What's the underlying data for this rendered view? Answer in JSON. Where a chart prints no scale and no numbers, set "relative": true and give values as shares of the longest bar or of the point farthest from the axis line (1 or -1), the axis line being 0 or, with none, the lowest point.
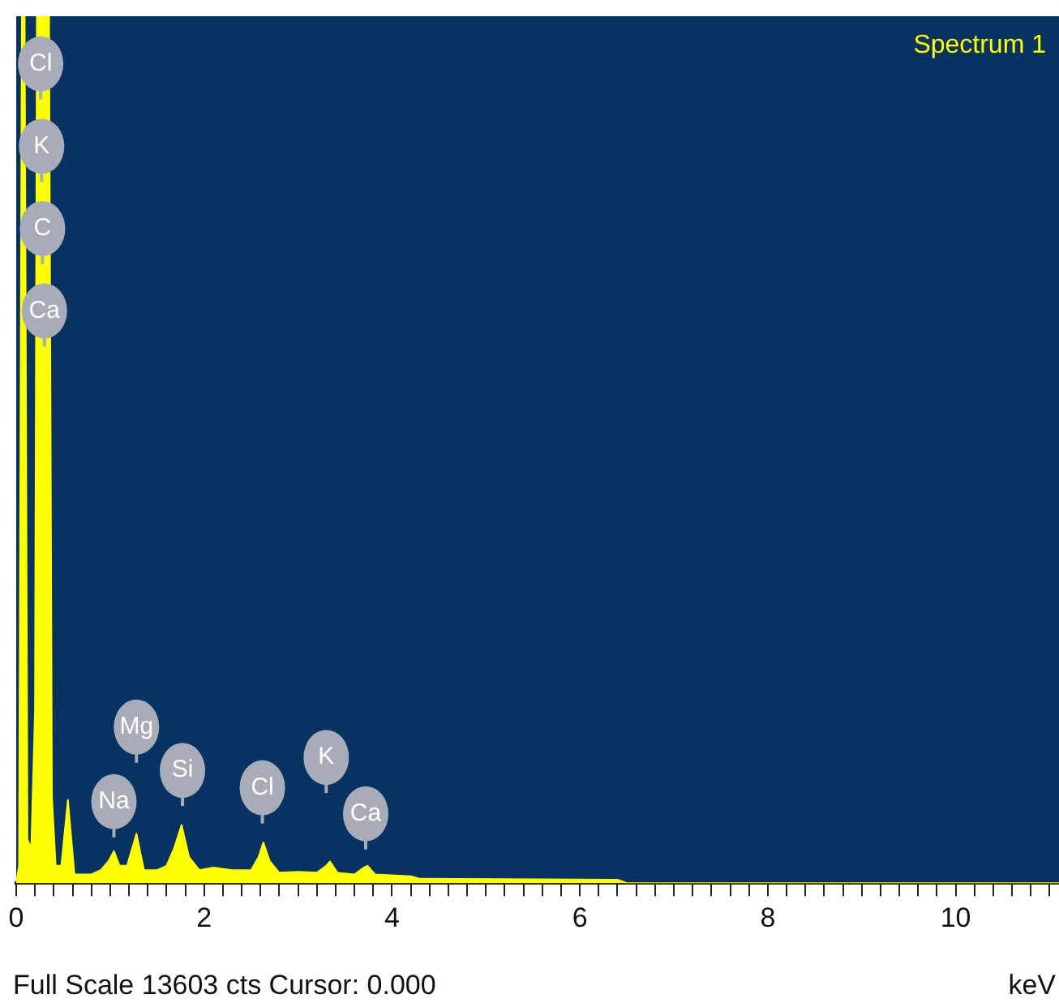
{
  "chart_data": {
    "type": "area",
    "title": "Spectrum 1",
    "xlabel": "keV",
    "relative": true,
    "legend": false,
    "grid": false,
    "marker": "none",
    "annotations": [
      "Full Scale 13603 cts Cursor: 0.000",
      {
        "text": "Cl",
        "x": 0.26,
        "y": 0.945
      },
      {
        "text": "K",
        "x": 0.27,
        "y": 0.85
      },
      {
        "text": "C",
        "x": 0.28,
        "y": 0.755
      },
      {
        "text": "Ca",
        "x": 0.3,
        "y": 0.66
      },
      {
        "text": "Na",
        "x": 1.04,
        "y": 0.094
      },
      {
        "text": "Mg",
        "x": 1.28,
        "y": 0.18
      },
      {
        "text": "Si",
        "x": 1.77,
        "y": 0.13
      },
      {
        "text": "Cl",
        "x": 2.62,
        "y": 0.11
      },
      {
        "text": "K",
        "x": 3.3,
        "y": 0.145
      },
      {
        "text": "Ca",
        "x": 3.72,
        "y": 0.08
      }
    ],
    "xlim": [
      0,
      11.1
    ],
    "xticks": [
      0,
      {
        "value": 0.2,
        "label": null
      },
      {
        "value": 0.4,
        "label": null
      },
      {
        "value": 0.6,
        "label": null
      },
      {
        "value": 0.8,
        "label": null
      },
      {
        "value": 1,
        "label": null
      },
      {
        "value": 1.2,
        "label": null
      },
      {
        "value": 1.4,
        "label": null
      },
      {
        "value": 1.6,
        "label": null
      },
      {
        "value": 1.8,
        "label": null
      },
      2,
      {
        "value": 2.2,
        "label": null
      },
      {
        "value": 2.4,
        "label": null
      },
      {
        "value": 2.6,
        "label": null
      },
      {
        "value": 2.8,
        "label": null
      },
      {
        "value": 3,
        "label": null
      },
      {
        "value": 3.2,
        "label": null
      },
      {
        "value": 3.4,
        "label": null
      },
      {
        "value": 3.6,
        "label": null
      },
      {
        "value": 3.8,
        "label": null
      },
      4,
      {
        "value": 4.2,
        "label": null
      },
      {
        "value": 4.4,
        "label": null
      },
      {
        "value": 4.6,
        "label": null
      },
      {
        "value": 4.8,
        "label": null
      },
      {
        "value": 5,
        "label": null
      },
      {
        "value": 5.2,
        "label": null
      },
      {
        "value": 5.4,
        "label": null
      },
      {
        "value": 5.6,
        "label": null
      },
      {
        "value": 5.8,
        "label": null
      },
      6,
      {
        "value": 6.2,
        "label": null
      },
      {
        "value": 6.4,
        "label": null
      },
      {
        "value": 6.6,
        "label": null
      },
      {
        "value": 6.8,
        "label": null
      },
      {
        "value": 7,
        "label": null
      },
      {
        "value": 7.2,
        "label": null
      },
      {
        "value": 7.4,
        "label": null
      },
      {
        "value": 7.6,
        "label": null
      },
      {
        "value": 7.8,
        "label": null
      },
      8,
      {
        "value": 8.2,
        "label": null
      },
      {
        "value": 8.4,
        "label": null
      },
      {
        "value": 8.6,
        "label": null
      },
      {
        "value": 8.8,
        "label": null
      },
      {
        "value": 9,
        "label": null
      },
      {
        "value": 9.2,
        "label": null
      },
      {
        "value": 9.4,
        "label": null
      },
      {
        "value": 9.6,
        "label": null
      },
      {
        "value": 9.8,
        "label": null
      },
      10,
      {
        "value": 10.2,
        "label": null
      },
      {
        "value": 10.4,
        "label": null
      },
      {
        "value": 10.6,
        "label": null
      },
      {
        "value": 10.8,
        "label": null
      },
      {
        "value": 11,
        "label": null
      }
    ],
    "x": [
      0,
      0.03,
      0.06,
      0.09,
      0.12,
      0.16,
      0.2,
      0.22,
      0.35,
      0.38,
      0.42,
      0.48,
      0.55,
      0.62,
      0.8,
      0.9,
      0.98,
      1.04,
      1.1,
      1.18,
      1.28,
      1.36,
      1.5,
      1.6,
      1.68,
      1.76,
      1.84,
      1.95,
      2.1,
      2.3,
      2.5,
      2.58,
      2.63,
      2.7,
      2.8,
      3.0,
      3.2,
      3.3,
      3.34,
      3.42,
      3.6,
      3.7,
      3.74,
      3.82,
      4.2,
      4.3,
      6.4,
      6.5,
      11.1
    ],
    "series": [
      {
        "color": "#ffff00",
        "values": [
          0,
          0.02,
          1,
          1,
          0.05,
          0.04,
          0.2,
          1,
          1,
          0.1,
          0.02,
          0.02,
          0.096,
          0.01,
          0.01,
          0.015,
          0.025,
          0.037,
          0.02,
          0.02,
          0.057,
          0.015,
          0.015,
          0.02,
          0.04,
          0.067,
          0.03,
          0.015,
          0.018,
          0.015,
          0.015,
          0.03,
          0.047,
          0.025,
          0.012,
          0.013,
          0.012,
          0.02,
          0.025,
          0.012,
          0.01,
          0.018,
          0.02,
          0.01,
          0.008,
          0.005,
          0.004,
          0,
          0
        ]
      }
    ]
  }
}
